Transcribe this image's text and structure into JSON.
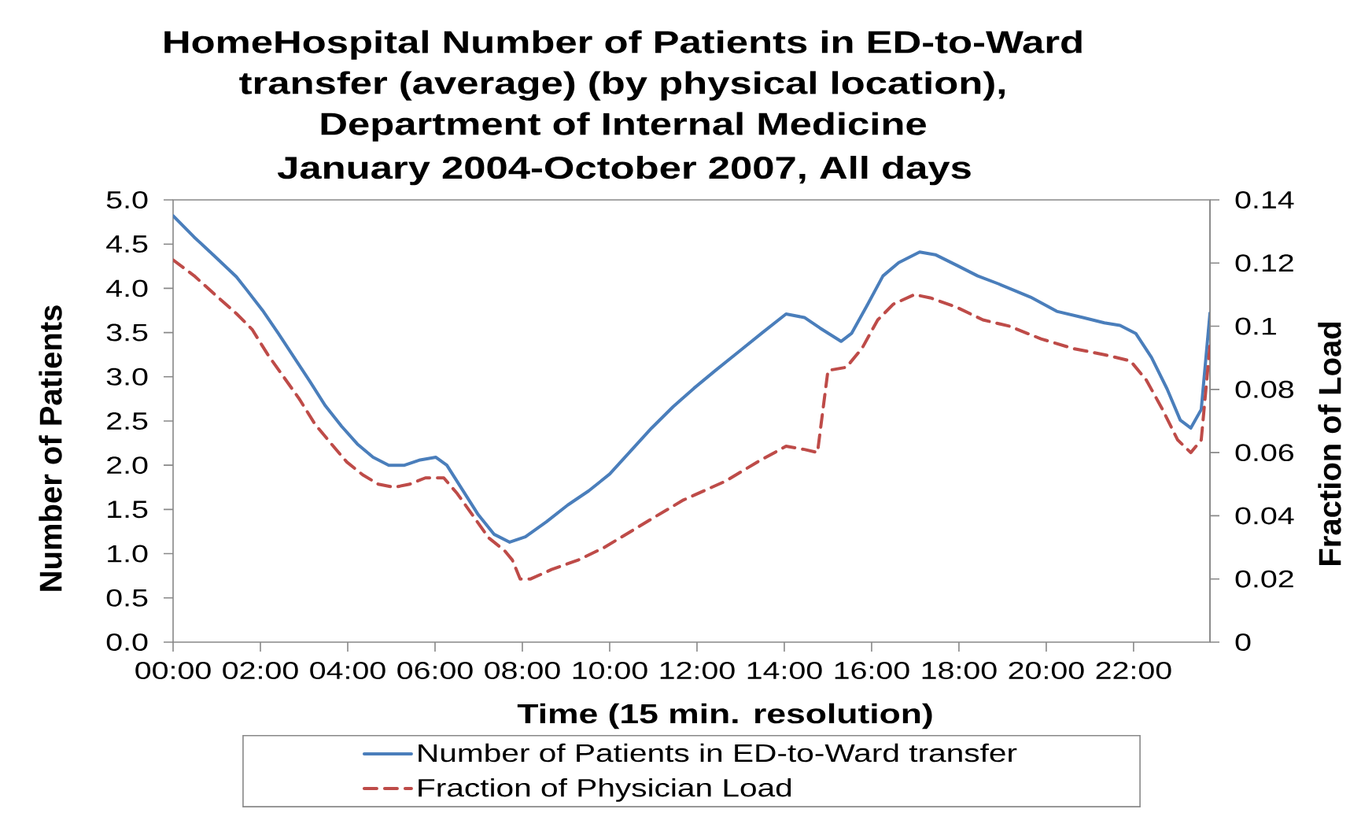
{
  "chart_data": {
    "type": "line",
    "title": "HomeHospital Number of Patients in ED-to-Ward transfer (average) (by physical location), Department of Internal Medicine",
    "subtitle": "January 2004-October 2007, All days",
    "xlabel": "Time (15 min. resolution)",
    "ylabel": "Number of Patients",
    "y2label": "Fraction of Load",
    "xlim": [
      0,
      23.75
    ],
    "xticks": [
      {
        "value": 0,
        "label": "00:00"
      },
      {
        "value": 2,
        "label": "02:00"
      },
      {
        "value": 4,
        "label": "04:00"
      },
      {
        "value": 6,
        "label": "06:00"
      },
      {
        "value": 8,
        "label": "08:00"
      },
      {
        "value": 10,
        "label": "10:00"
      },
      {
        "value": 12,
        "label": "12:00"
      },
      {
        "value": 14,
        "label": "14:00"
      },
      {
        "value": 16,
        "label": "16:00"
      },
      {
        "value": 18,
        "label": "18:00"
      },
      {
        "value": 20,
        "label": "20:00"
      },
      {
        "value": 22,
        "label": "22:00"
      }
    ],
    "ylim": [
      0,
      5
    ],
    "yticks": [
      {
        "value": 0,
        "label": "0.0"
      },
      {
        "value": 0.5,
        "label": "0.5"
      },
      {
        "value": 1,
        "label": "1.0"
      },
      {
        "value": 1.5,
        "label": "1.5"
      },
      {
        "value": 2,
        "label": "2.0"
      },
      {
        "value": 2.5,
        "label": "2.5"
      },
      {
        "value": 3,
        "label": "3.0"
      },
      {
        "value": 3.5,
        "label": "3.5"
      },
      {
        "value": 4,
        "label": "4.0"
      },
      {
        "value": 4.5,
        "label": "4.5"
      },
      {
        "value": 5,
        "label": "5.0"
      }
    ],
    "y2lim": [
      0,
      0.14
    ],
    "y2ticks": [
      0,
      0.02,
      0.04,
      0.06,
      0.08,
      0.1,
      0.12,
      0.14
    ],
    "legend": "bottom",
    "marker": "none",
    "series": [
      {
        "name": "Number of Patients in ED-to-Ward transfer",
        "color": "#4a7ebb",
        "line_style": "solid",
        "x": [
          0,
          0.48,
          0.96,
          1.45,
          1.69,
          2.05,
          2.41,
          2.77,
          3.13,
          3.49,
          3.86,
          4.22,
          4.58,
          4.94,
          5.3,
          5.66,
          6.02,
          6.27,
          6.63,
          6.99,
          7.35,
          7.71,
          8.07,
          8.55,
          9.04,
          9.52,
          10.0,
          10.48,
          10.96,
          11.45,
          11.93,
          12.42,
          13.0,
          13.5,
          14.04,
          14.46,
          14.82,
          15.3,
          15.54,
          15.9,
          16.26,
          16.62,
          17.1,
          17.46,
          17.95,
          18.43,
          18.91,
          19.64,
          20.24,
          20.84,
          21.33,
          21.69,
          22.05,
          22.41,
          22.77,
          23.07,
          23.31,
          23.55,
          23.75
        ],
        "values": [
          4.82,
          4.58,
          4.36,
          4.13,
          3.98,
          3.75,
          3.49,
          3.22,
          2.95,
          2.67,
          2.44,
          2.24,
          2.09,
          2.0,
          2.0,
          2.06,
          2.09,
          2.0,
          1.72,
          1.44,
          1.22,
          1.13,
          1.19,
          1.36,
          1.55,
          1.71,
          1.9,
          2.16,
          2.42,
          2.66,
          2.87,
          3.07,
          3.3,
          3.5,
          3.71,
          3.67,
          3.55,
          3.4,
          3.49,
          3.81,
          4.14,
          4.29,
          4.41,
          4.38,
          4.26,
          4.14,
          4.05,
          3.9,
          3.74,
          3.67,
          3.61,
          3.58,
          3.49,
          3.22,
          2.86,
          2.51,
          2.42,
          2.63,
          3.72
        ]
      },
      {
        "name": "Fraction of Physician Load",
        "color": "#be4b48",
        "line_style": "dashed",
        "axis": "y2",
        "x": [
          0,
          0.48,
          0.96,
          1.45,
          1.81,
          2.17,
          2.53,
          2.89,
          3.25,
          3.61,
          3.98,
          4.34,
          4.7,
          5.06,
          5.42,
          5.78,
          6.2,
          6.51,
          6.87,
          7.23,
          7.59,
          7.77,
          7.95,
          8.19,
          8.67,
          9.28,
          9.88,
          10.48,
          11.08,
          11.69,
          12.66,
          13.38,
          14.04,
          14.46,
          14.76,
          15.0,
          15.42,
          15.78,
          16.14,
          16.5,
          16.98,
          17.34,
          17.95,
          18.55,
          19.16,
          19.88,
          20.6,
          21.33,
          21.93,
          22.29,
          22.65,
          23.01,
          23.31,
          23.55,
          23.75
        ],
        "values": [
          0.121,
          0.116,
          0.11,
          0.104,
          0.099,
          0.091,
          0.084,
          0.077,
          0.069,
          0.063,
          0.057,
          0.053,
          0.05,
          0.049,
          0.05,
          0.052,
          0.052,
          0.047,
          0.04,
          0.033,
          0.029,
          0.026,
          0.02,
          0.02,
          0.023,
          0.026,
          0.03,
          0.035,
          0.04,
          0.045,
          0.051,
          0.057,
          0.062,
          0.061,
          0.06,
          0.086,
          0.087,
          0.093,
          0.102,
          0.107,
          0.11,
          0.109,
          0.106,
          0.102,
          0.1,
          0.096,
          0.093,
          0.091,
          0.089,
          0.083,
          0.074,
          0.064,
          0.06,
          0.064,
          0.094
        ]
      }
    ]
  }
}
